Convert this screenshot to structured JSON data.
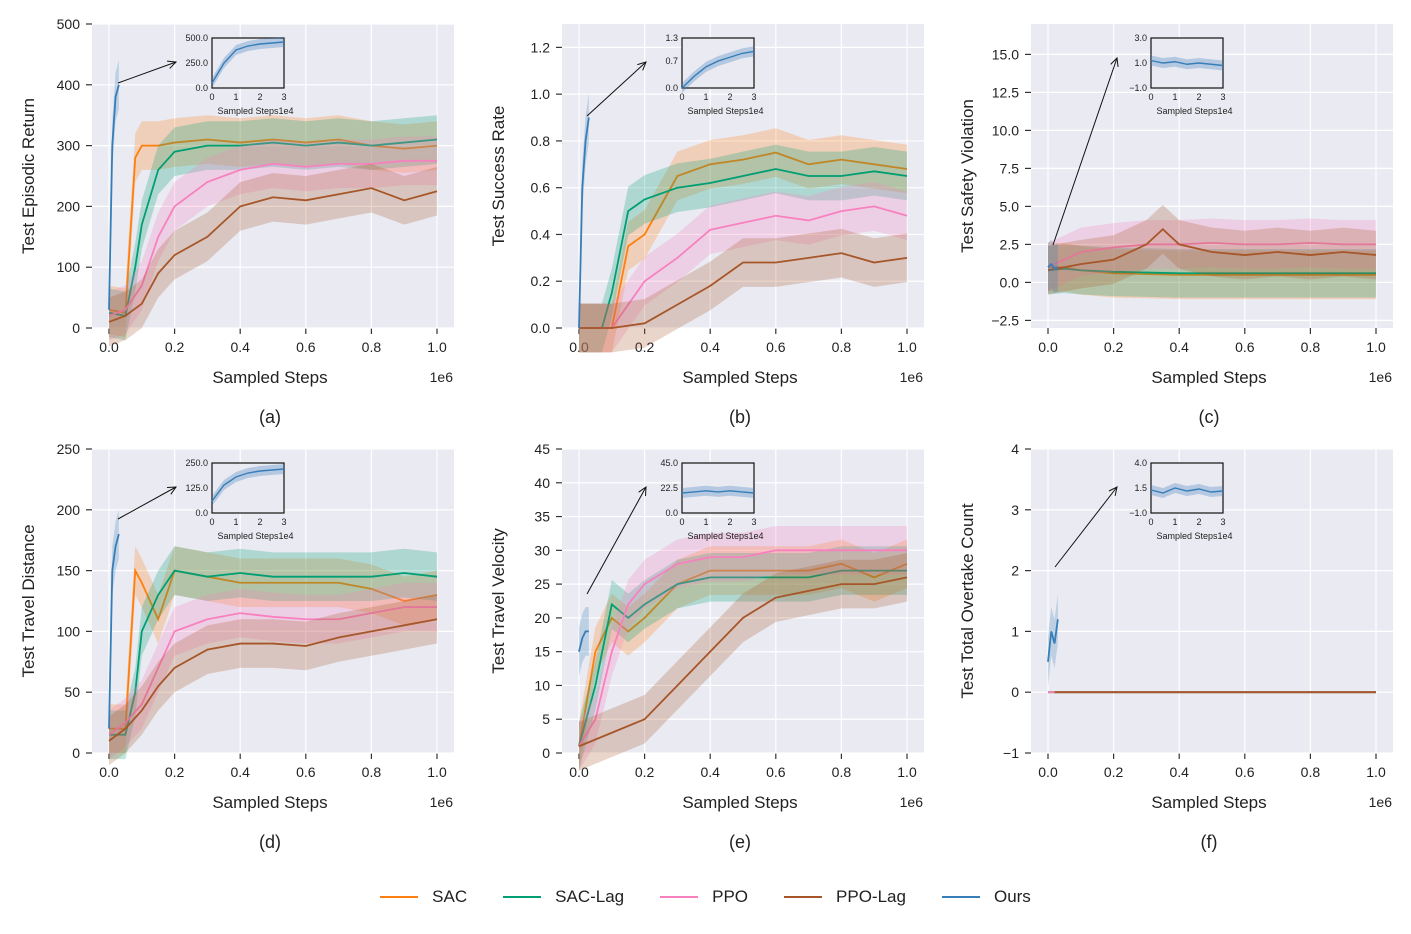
{
  "legend": [
    {
      "label": "SAC",
      "color": "#ff7f0e"
    },
    {
      "label": "SAC-Lag",
      "color": "#009e73"
    },
    {
      "label": "PPO",
      "color": "#f781bf"
    },
    {
      "label": "PPO-Lag",
      "color": "#a65628"
    },
    {
      "label": "Ours",
      "color": "#377eb8"
    }
  ],
  "chart_data": [
    {
      "type": "line",
      "panel": "(a)",
      "ylabel": "Test Episodic Return",
      "xlabel": "Sampled Steps",
      "x_multiplier": "1e6",
      "xlim": [
        0,
        1.0
      ],
      "xticks": [
        "0.0",
        "0.2",
        "0.4",
        "0.6",
        "0.8",
        "1.0"
      ],
      "ylim": [
        0,
        500
      ],
      "yticks": [
        "0",
        "100",
        "200",
        "300",
        "400",
        "500"
      ],
      "series": [
        {
          "name": "SAC",
          "x": [
            0,
            0.05,
            0.08,
            0.1,
            0.15,
            0.2,
            0.3,
            0.4,
            0.5,
            0.6,
            0.7,
            0.8,
            0.9,
            1.0
          ],
          "y": [
            30,
            25,
            280,
            300,
            300,
            305,
            310,
            305,
            310,
            305,
            310,
            300,
            295,
            300
          ]
        },
        {
          "name": "SAC-Lag",
          "x": [
            0,
            0.05,
            0.08,
            0.1,
            0.15,
            0.2,
            0.3,
            0.4,
            0.5,
            0.6,
            0.7,
            0.8,
            0.9,
            1.0
          ],
          "y": [
            25,
            20,
            100,
            170,
            260,
            290,
            300,
            300,
            305,
            300,
            305,
            300,
            305,
            310
          ]
        },
        {
          "name": "PPO",
          "x": [
            0,
            0.05,
            0.1,
            0.15,
            0.2,
            0.3,
            0.4,
            0.5,
            0.6,
            0.7,
            0.8,
            0.9,
            1.0
          ],
          "y": [
            20,
            30,
            70,
            150,
            200,
            240,
            260,
            270,
            265,
            270,
            270,
            275,
            275
          ]
        },
        {
          "name": "PPO-Lag",
          "x": [
            0,
            0.05,
            0.1,
            0.15,
            0.2,
            0.3,
            0.4,
            0.5,
            0.6,
            0.7,
            0.8,
            0.9,
            1.0
          ],
          "y": [
            10,
            20,
            40,
            90,
            120,
            150,
            200,
            215,
            210,
            220,
            230,
            210,
            225
          ]
        },
        {
          "name": "Ours",
          "x": [
            0,
            0.01,
            0.02,
            0.03
          ],
          "y": [
            30,
            300,
            380,
            400
          ]
        }
      ],
      "inset": {
        "ylim": [
          0.0,
          500.0
        ],
        "yticks": [
          "0.0",
          "250.0",
          "500.0"
        ],
        "xticks": [
          "0",
          "1",
          "2",
          "3"
        ],
        "xlabel": "Sampled Steps",
        "x_multiplier": "1e4",
        "x": [
          0,
          0.5,
          1,
          1.5,
          2,
          2.5,
          3
        ],
        "y": [
          50,
          250,
          380,
          420,
          440,
          450,
          460
        ]
      }
    },
    {
      "type": "line",
      "panel": "(b)",
      "ylabel": "Test Success Rate",
      "xlabel": "Sampled Steps",
      "x_multiplier": "1e6",
      "xlim": [
        0,
        1.0
      ],
      "xticks": [
        "0.0",
        "0.2",
        "0.4",
        "0.6",
        "0.8",
        "1.0"
      ],
      "ylim": [
        0,
        1.3
      ],
      "yticks": [
        "0.0",
        "0.2",
        "0.4",
        "0.6",
        "0.8",
        "1.0",
        "1.2"
      ],
      "series": [
        {
          "name": "SAC",
          "x": [
            0,
            0.1,
            0.15,
            0.2,
            0.3,
            0.4,
            0.5,
            0.6,
            0.7,
            0.8,
            0.9,
            1.0
          ],
          "y": [
            0,
            0,
            0.35,
            0.4,
            0.65,
            0.7,
            0.72,
            0.75,
            0.7,
            0.72,
            0.7,
            0.68
          ]
        },
        {
          "name": "SAC-Lag",
          "x": [
            0,
            0.07,
            0.1,
            0.15,
            0.2,
            0.3,
            0.4,
            0.5,
            0.6,
            0.7,
            0.8,
            0.9,
            1.0
          ],
          "y": [
            0,
            0,
            0.15,
            0.5,
            0.55,
            0.6,
            0.62,
            0.65,
            0.68,
            0.65,
            0.65,
            0.67,
            0.65
          ]
        },
        {
          "name": "PPO",
          "x": [
            0,
            0.1,
            0.15,
            0.2,
            0.3,
            0.4,
            0.5,
            0.6,
            0.7,
            0.8,
            0.9,
            1.0
          ],
          "y": [
            0,
            0,
            0.1,
            0.2,
            0.3,
            0.42,
            0.45,
            0.48,
            0.46,
            0.5,
            0.52,
            0.48
          ]
        },
        {
          "name": "PPO-Lag",
          "x": [
            0,
            0.1,
            0.2,
            0.3,
            0.4,
            0.5,
            0.6,
            0.7,
            0.8,
            0.9,
            1.0
          ],
          "y": [
            0,
            0,
            0.02,
            0.1,
            0.18,
            0.28,
            0.28,
            0.3,
            0.32,
            0.28,
            0.3
          ]
        },
        {
          "name": "Ours",
          "x": [
            0,
            0.01,
            0.02,
            0.03
          ],
          "y": [
            0,
            0.6,
            0.8,
            0.9
          ]
        }
      ],
      "inset": {
        "ylim": [
          0.0,
          1.3
        ],
        "yticks": [
          "0.0",
          "0.7",
          "1.3"
        ],
        "xticks": [
          "0",
          "1",
          "2",
          "3"
        ],
        "xlabel": "Sampled Steps",
        "x_multiplier": "1e4",
        "x": [
          0,
          0.5,
          1,
          1.5,
          2,
          2.5,
          3
        ],
        "y": [
          0,
          0.3,
          0.55,
          0.7,
          0.8,
          0.9,
          0.95
        ]
      }
    },
    {
      "type": "line",
      "panel": "(c)",
      "ylabel": "Test Safety Violation",
      "xlabel": "Sampled Steps",
      "x_multiplier": "1e6",
      "xlim": [
        0,
        1.0
      ],
      "xticks": [
        "0.0",
        "0.2",
        "0.4",
        "0.6",
        "0.8",
        "1.0"
      ],
      "ylim": [
        -3.0,
        17.0
      ],
      "yticks": [
        "−2.5",
        "0.0",
        "2.5",
        "5.0",
        "7.5",
        "10.0",
        "12.5",
        "15.0"
      ],
      "series": [
        {
          "name": "SAC",
          "x": [
            0,
            0.05,
            0.1,
            0.2,
            0.4,
            0.6,
            0.8,
            1.0
          ],
          "y": [
            1.0,
            1.0,
            0.8,
            0.6,
            0.5,
            0.5,
            0.5,
            0.5
          ]
        },
        {
          "name": "SAC-Lag",
          "x": [
            0,
            0.05,
            0.1,
            0.2,
            0.4,
            0.6,
            0.8,
            1.0
          ],
          "y": [
            0.8,
            0.9,
            0.8,
            0.7,
            0.6,
            0.6,
            0.6,
            0.6
          ]
        },
        {
          "name": "PPO",
          "x": [
            0,
            0.05,
            0.1,
            0.2,
            0.3,
            0.4,
            0.5,
            0.6,
            0.7,
            0.8,
            0.9,
            1.0
          ],
          "y": [
            1.0,
            1.5,
            2.0,
            2.3,
            2.5,
            2.5,
            2.6,
            2.5,
            2.5,
            2.6,
            2.5,
            2.5
          ]
        },
        {
          "name": "PPO-Lag",
          "x": [
            0,
            0.05,
            0.1,
            0.2,
            0.3,
            0.35,
            0.4,
            0.5,
            0.6,
            0.7,
            0.8,
            0.9,
            1.0
          ],
          "y": [
            0.8,
            1.0,
            1.2,
            1.5,
            2.5,
            3.5,
            2.5,
            2.0,
            1.8,
            2.0,
            1.8,
            2.0,
            1.8
          ]
        },
        {
          "name": "Ours",
          "x": [
            0,
            0.01,
            0.02,
            0.03
          ],
          "y": [
            1.0,
            1.2,
            0.9,
            1.0
          ]
        }
      ],
      "inset": {
        "ylim": [
          -1.0,
          3.0
        ],
        "yticks": [
          "−1.0",
          "1.0",
          "3.0"
        ],
        "xticks": [
          "0",
          "1",
          "2",
          "3"
        ],
        "xlabel": "Sampled Steps",
        "x_multiplier": "1e4",
        "x": [
          0,
          0.5,
          1,
          1.5,
          2,
          2.5,
          3
        ],
        "y": [
          1.2,
          1.0,
          1.1,
          0.9,
          1.0,
          0.9,
          0.8
        ]
      }
    },
    {
      "type": "line",
      "panel": "(d)",
      "ylabel": "Test Travel Distance",
      "xlabel": "Sampled Steps",
      "x_multiplier": "1e6",
      "xlim": [
        0,
        1.0
      ],
      "xticks": [
        "0.0",
        "0.2",
        "0.4",
        "0.6",
        "0.8",
        "1.0"
      ],
      "ylim": [
        0,
        250
      ],
      "yticks": [
        "0",
        "50",
        "100",
        "150",
        "200",
        "250"
      ],
      "series": [
        {
          "name": "SAC",
          "x": [
            0,
            0.05,
            0.08,
            0.1,
            0.15,
            0.2,
            0.3,
            0.4,
            0.5,
            0.6,
            0.7,
            0.8,
            0.9,
            1.0
          ],
          "y": [
            20,
            20,
            150,
            140,
            110,
            150,
            145,
            140,
            140,
            140,
            140,
            135,
            125,
            130
          ]
        },
        {
          "name": "SAC-Lag",
          "x": [
            0,
            0.05,
            0.08,
            0.1,
            0.15,
            0.2,
            0.3,
            0.4,
            0.5,
            0.6,
            0.7,
            0.8,
            0.9,
            1.0
          ],
          "y": [
            15,
            15,
            50,
            100,
            130,
            150,
            145,
            148,
            145,
            145,
            145,
            145,
            148,
            145
          ]
        },
        {
          "name": "PPO",
          "x": [
            0,
            0.05,
            0.1,
            0.15,
            0.2,
            0.3,
            0.4,
            0.5,
            0.6,
            0.7,
            0.8,
            0.9,
            1.0
          ],
          "y": [
            15,
            25,
            40,
            70,
            100,
            110,
            115,
            112,
            110,
            110,
            115,
            120,
            120
          ]
        },
        {
          "name": "PPO-Lag",
          "x": [
            0,
            0.05,
            0.1,
            0.15,
            0.2,
            0.3,
            0.4,
            0.5,
            0.6,
            0.7,
            0.8,
            0.9,
            1.0
          ],
          "y": [
            10,
            20,
            35,
            55,
            70,
            85,
            90,
            90,
            88,
            95,
            100,
            105,
            110
          ]
        },
        {
          "name": "Ours",
          "x": [
            0,
            0.01,
            0.02,
            0.03
          ],
          "y": [
            20,
            150,
            170,
            180
          ]
        }
      ],
      "inset": {
        "ylim": [
          0.0,
          250.0
        ],
        "yticks": [
          "0.0",
          "125.0",
          "250.0"
        ],
        "xticks": [
          "0",
          "1",
          "2",
          "3"
        ],
        "xlabel": "Sampled Steps",
        "x_multiplier": "1e4",
        "x": [
          0,
          0.5,
          1,
          1.5,
          2,
          2.5,
          3
        ],
        "y": [
          60,
          140,
          180,
          200,
          210,
          215,
          220
        ]
      }
    },
    {
      "type": "line",
      "panel": "(e)",
      "ylabel": "Test Travel Velocity",
      "xlabel": "Sampled Steps",
      "x_multiplier": "1e6",
      "xlim": [
        0,
        1.0
      ],
      "xticks": [
        "0.0",
        "0.2",
        "0.4",
        "0.6",
        "0.8",
        "1.0"
      ],
      "ylim": [
        0,
        45
      ],
      "yticks": [
        "0",
        "5",
        "10",
        "15",
        "20",
        "25",
        "30",
        "35",
        "40",
        "45"
      ],
      "series": [
        {
          "name": "SAC",
          "x": [
            0,
            0.05,
            0.1,
            0.15,
            0.2,
            0.3,
            0.4,
            0.5,
            0.6,
            0.7,
            0.8,
            0.9,
            1.0
          ],
          "y": [
            1,
            15,
            20,
            18,
            20,
            25,
            27,
            27,
            27,
            27,
            28,
            26,
            28
          ]
        },
        {
          "name": "SAC-Lag",
          "x": [
            0,
            0.05,
            0.1,
            0.15,
            0.2,
            0.3,
            0.4,
            0.5,
            0.6,
            0.7,
            0.8,
            0.9,
            1.0
          ],
          "y": [
            1,
            10,
            22,
            20,
            22,
            25,
            26,
            26,
            26,
            26,
            27,
            27,
            27
          ]
        },
        {
          "name": "PPO",
          "x": [
            0,
            0.05,
            0.1,
            0.15,
            0.2,
            0.3,
            0.4,
            0.5,
            0.6,
            0.7,
            0.8,
            0.9,
            1.0
          ],
          "y": [
            1,
            5,
            15,
            22,
            25,
            28,
            29,
            29,
            30,
            30,
            30,
            30,
            30
          ]
        },
        {
          "name": "PPO-Lag",
          "x": [
            0,
            0.05,
            0.1,
            0.2,
            0.3,
            0.4,
            0.5,
            0.6,
            0.7,
            0.8,
            0.9,
            1.0
          ],
          "y": [
            1,
            2,
            3,
            5,
            10,
            15,
            20,
            23,
            24,
            25,
            25,
            26
          ]
        },
        {
          "name": "Ours",
          "x": [
            0,
            0.01,
            0.02,
            0.03
          ],
          "y": [
            15,
            17,
            18,
            18
          ]
        }
      ],
      "inset": {
        "ylim": [
          0.0,
          45.0
        ],
        "yticks": [
          "0.0",
          "22.5",
          "45.0"
        ],
        "xticks": [
          "0",
          "1",
          "2",
          "3"
        ],
        "xlabel": "Sampled Steps",
        "x_multiplier": "1e4",
        "x": [
          0,
          0.5,
          1,
          1.5,
          2,
          2.5,
          3
        ],
        "y": [
          18,
          19,
          20,
          19,
          20,
          19,
          18
        ]
      }
    },
    {
      "type": "line",
      "panel": "(f)",
      "ylabel": "Test Total Overtake Count",
      "xlabel": "Sampled Steps",
      "x_multiplier": "1e6",
      "xlim": [
        0,
        1.0
      ],
      "xticks": [
        "0.0",
        "0.2",
        "0.4",
        "0.6",
        "0.8",
        "1.0"
      ],
      "ylim": [
        -1,
        4
      ],
      "yticks": [
        "−1",
        "0",
        "1",
        "2",
        "3",
        "4"
      ],
      "series": [
        {
          "name": "SAC",
          "x": [
            0,
            1.0
          ],
          "y": [
            0,
            0
          ]
        },
        {
          "name": "SAC-Lag",
          "x": [
            0,
            1.0
          ],
          "y": [
            0,
            0
          ]
        },
        {
          "name": "PPO",
          "x": [
            0,
            1.0
          ],
          "y": [
            0,
            0
          ]
        },
        {
          "name": "PPO-Lag",
          "x": [
            0.02,
            1.0
          ],
          "y": [
            0,
            0
          ]
        },
        {
          "name": "Ours",
          "x": [
            0,
            0.01,
            0.02,
            0.03
          ],
          "y": [
            0.5,
            1.0,
            0.8,
            1.2
          ]
        }
      ],
      "inset": {
        "ylim": [
          -1.0,
          4.0
        ],
        "yticks": [
          "−1.0",
          "1.5",
          "4.0"
        ],
        "xticks": [
          "0",
          "1",
          "2",
          "3"
        ],
        "xlabel": "Sampled Steps",
        "x_multiplier": "1e4",
        "x": [
          0,
          0.5,
          1,
          1.5,
          2,
          2.5,
          3
        ],
        "y": [
          1.3,
          1.0,
          1.5,
          1.2,
          1.4,
          1.1,
          1.2
        ]
      }
    }
  ]
}
